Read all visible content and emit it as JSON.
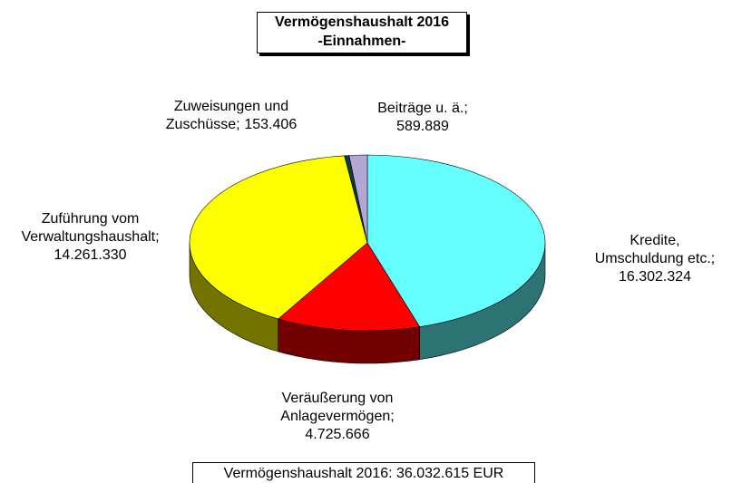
{
  "chart_data": {
    "type": "pie3d",
    "title": "Vermögenshaushalt 2016",
    "subtitle": "-Einnahmen-",
    "categories": [
      "Kredite, Umschuldung etc.;",
      "Veräußerung von Anlagevermögen;",
      "Zuführung vom Verwaltungshaushalt;",
      "Zuweisungen und Zuschüsse;",
      "Beiträge u. ä.;"
    ],
    "values": [
      16302324,
      4725666,
      14261330,
      153406,
      589889
    ],
    "value_labels": [
      "16.302.324",
      "4.725.666",
      "14.261.330",
      "153.406",
      "589.889"
    ],
    "colors": [
      "#66ffff",
      "#ff0000",
      "#ffff00",
      "#0d3b3b",
      "#b4a7d6"
    ],
    "total_label": "Vermögenshaushalt 2016: 36.032.615 EUR"
  }
}
